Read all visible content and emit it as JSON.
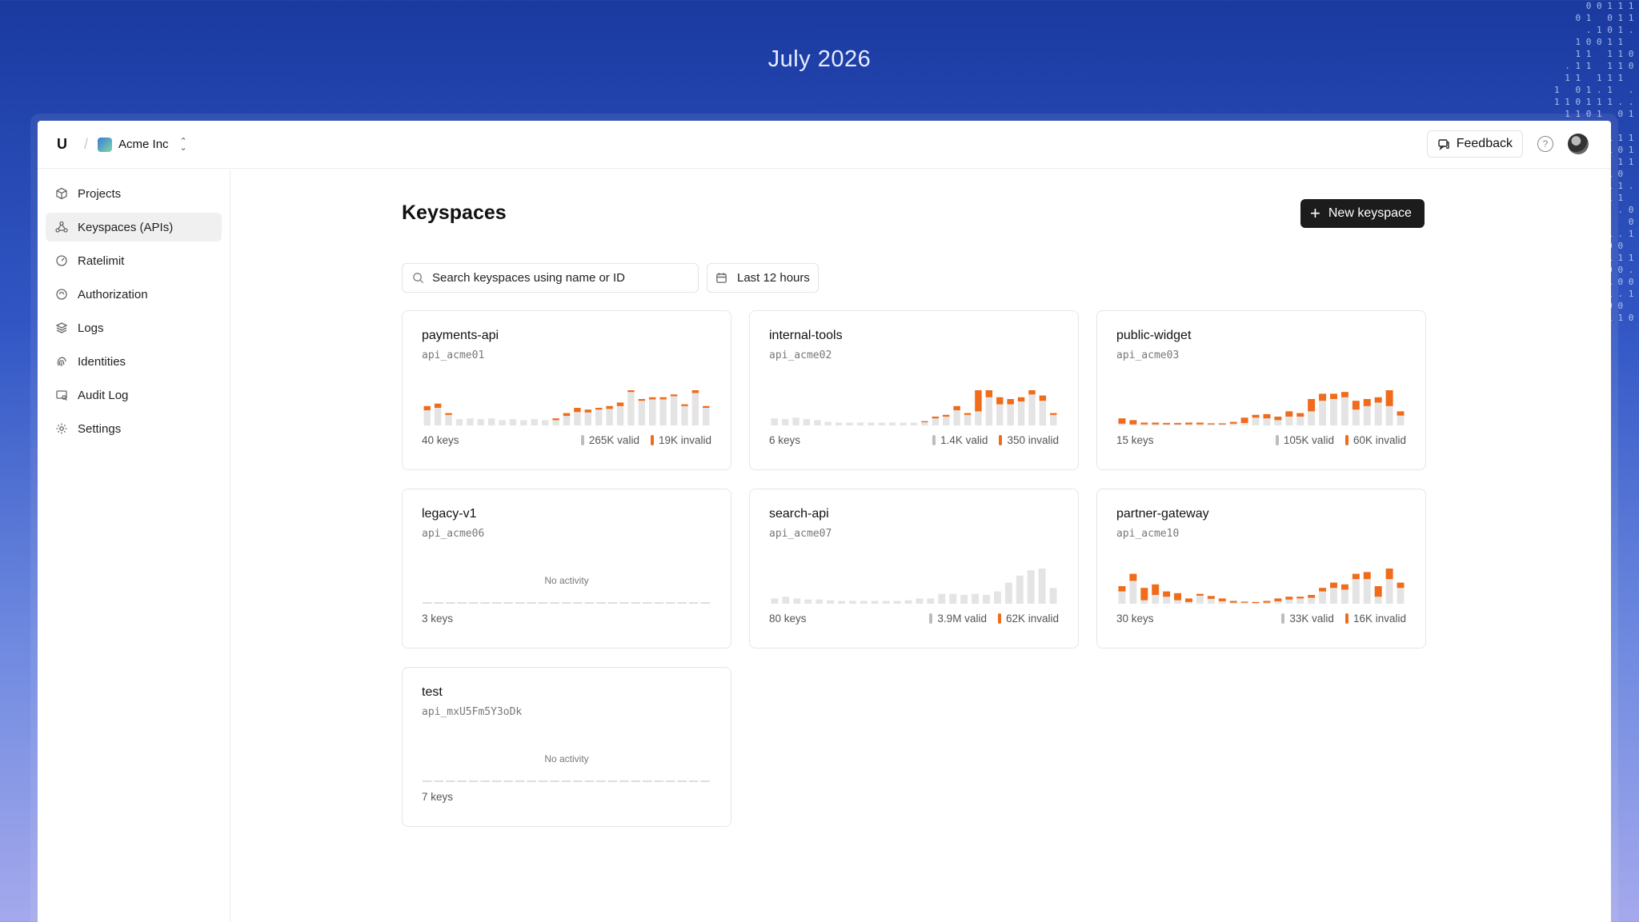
{
  "banner": {
    "date": "July 2026"
  },
  "topbar": {
    "logo": "U",
    "org_name": "Acme Inc",
    "feedback_label": "Feedback",
    "help_glyph": "?"
  },
  "sidebar": {
    "items": [
      {
        "label": "Projects",
        "icon": "cube-icon"
      },
      {
        "label": "Keyspaces (APIs)",
        "icon": "nodes-icon",
        "active": true
      },
      {
        "label": "Ratelimit",
        "icon": "gauge-icon"
      },
      {
        "label": "Authorization",
        "icon": "shield-icon"
      },
      {
        "label": "Logs",
        "icon": "layers-icon"
      },
      {
        "label": "Identities",
        "icon": "fingerprint-icon"
      },
      {
        "label": "Audit Log",
        "icon": "search-doc-icon"
      },
      {
        "label": "Settings",
        "icon": "gear-icon"
      }
    ]
  },
  "main": {
    "title": "Keyspaces",
    "new_button_label": "New keyspace",
    "search_placeholder": "Search keyspaces using name or ID",
    "range_label": "Last 12 hours",
    "no_activity_label": "No activity"
  },
  "colors": {
    "valid": "#e4e4e4",
    "invalid": "#f06b1a",
    "empty": "#dedede"
  },
  "keyspaces": [
    {
      "name": "payments-api",
      "id": "api_acme01",
      "keys": "40 keys",
      "valid": "265K valid",
      "invalid": "19K invalid",
      "activity": [
        [
          0.55,
          0.12
        ],
        [
          0.62,
          0.12
        ],
        [
          0.35,
          0.05
        ],
        [
          0.18,
          0
        ],
        [
          0.2,
          0
        ],
        [
          0.18,
          0
        ],
        [
          0.2,
          0
        ],
        [
          0.15,
          0
        ],
        [
          0.18,
          0
        ],
        [
          0.15,
          0
        ],
        [
          0.18,
          0
        ],
        [
          0.15,
          0
        ],
        [
          0.2,
          0.05
        ],
        [
          0.35,
          0.08
        ],
        [
          0.5,
          0.12
        ],
        [
          0.45,
          0.08
        ],
        [
          0.5,
          0.05
        ],
        [
          0.55,
          0.08
        ],
        [
          0.65,
          0.1
        ],
        [
          1.0,
          0.05
        ],
        [
          0.75,
          0.05
        ],
        [
          0.8,
          0.06
        ],
        [
          0.8,
          0.06
        ],
        [
          0.88,
          0.05
        ],
        [
          0.6,
          0.05
        ],
        [
          1.0,
          0.08
        ],
        [
          0.55,
          0.05
        ]
      ]
    },
    {
      "name": "internal-tools",
      "id": "api_acme02",
      "keys": "6 keys",
      "valid": "1.4K valid",
      "invalid": "350 invalid",
      "activity": [
        [
          0.2,
          0
        ],
        [
          0.18,
          0
        ],
        [
          0.22,
          0
        ],
        [
          0.18,
          0
        ],
        [
          0.15,
          0
        ],
        [
          0.1,
          0
        ],
        [
          0.08,
          0
        ],
        [
          0.08,
          0
        ],
        [
          0.08,
          0
        ],
        [
          0.08,
          0
        ],
        [
          0.08,
          0
        ],
        [
          0.08,
          0
        ],
        [
          0.08,
          0
        ],
        [
          0.08,
          0
        ],
        [
          0.12,
          0.03
        ],
        [
          0.25,
          0.05
        ],
        [
          0.3,
          0.05
        ],
        [
          0.55,
          0.12
        ],
        [
          0.35,
          0.05
        ],
        [
          1.0,
          0.6
        ],
        [
          1.0,
          0.2
        ],
        [
          0.8,
          0.2
        ],
        [
          0.75,
          0.15
        ],
        [
          0.8,
          0.12
        ],
        [
          1.0,
          0.12
        ],
        [
          0.85,
          0.15
        ],
        [
          0.35,
          0.05
        ]
      ]
    },
    {
      "name": "public-widget",
      "id": "api_acme03",
      "keys": "15 keys",
      "valid": "105K valid",
      "invalid": "60K invalid",
      "activity": [
        [
          0.2,
          0.15
        ],
        [
          0.15,
          0.12
        ],
        [
          0.08,
          0.05
        ],
        [
          0.08,
          0.05
        ],
        [
          0.07,
          0.04
        ],
        [
          0.07,
          0.04
        ],
        [
          0.08,
          0.05
        ],
        [
          0.08,
          0.05
        ],
        [
          0.06,
          0.03
        ],
        [
          0.06,
          0.03
        ],
        [
          0.1,
          0.05
        ],
        [
          0.22,
          0.15
        ],
        [
          0.3,
          0.08
        ],
        [
          0.32,
          0.12
        ],
        [
          0.25,
          0.1
        ],
        [
          0.4,
          0.15
        ],
        [
          0.35,
          0.1
        ],
        [
          0.75,
          0.35
        ],
        [
          0.9,
          0.2
        ],
        [
          0.9,
          0.15
        ],
        [
          0.95,
          0.15
        ],
        [
          0.7,
          0.25
        ],
        [
          0.75,
          0.2
        ],
        [
          0.8,
          0.15
        ],
        [
          1.0,
          0.45
        ],
        [
          0.4,
          0.12
        ]
      ]
    },
    {
      "name": "legacy-v1",
      "id": "api_acme06",
      "keys": "3 keys",
      "valid": "",
      "invalid": "",
      "no_activity": true,
      "activity": []
    },
    {
      "name": "search-api",
      "id": "api_acme07",
      "keys": "80 keys",
      "valid": "3.9M valid",
      "invalid": "62K invalid",
      "activity": [
        [
          0.15,
          0
        ],
        [
          0.2,
          0
        ],
        [
          0.15,
          0
        ],
        [
          0.12,
          0
        ],
        [
          0.12,
          0
        ],
        [
          0.1,
          0
        ],
        [
          0.08,
          0
        ],
        [
          0.08,
          0
        ],
        [
          0.08,
          0
        ],
        [
          0.08,
          0
        ],
        [
          0.08,
          0
        ],
        [
          0.08,
          0
        ],
        [
          0.1,
          0
        ],
        [
          0.15,
          0
        ],
        [
          0.15,
          0
        ],
        [
          0.28,
          0
        ],
        [
          0.28,
          0
        ],
        [
          0.25,
          0
        ],
        [
          0.28,
          0
        ],
        [
          0.25,
          0
        ],
        [
          0.35,
          0
        ],
        [
          0.6,
          0
        ],
        [
          0.8,
          0
        ],
        [
          0.95,
          0
        ],
        [
          1.0,
          0
        ],
        [
          0.45,
          0
        ]
      ]
    },
    {
      "name": "partner-gateway",
      "id": "api_acme10",
      "keys": "30 keys",
      "valid": "33K valid",
      "invalid": "16K invalid",
      "activity": [
        [
          0.5,
          0.15
        ],
        [
          0.85,
          0.2
        ],
        [
          0.45,
          0.35
        ],
        [
          0.55,
          0.3
        ],
        [
          0.35,
          0.15
        ],
        [
          0.3,
          0.2
        ],
        [
          0.15,
          0.1
        ],
        [
          0.28,
          0.05
        ],
        [
          0.22,
          0.08
        ],
        [
          0.15,
          0.08
        ],
        [
          0.08,
          0.05
        ],
        [
          0.06,
          0.03
        ],
        [
          0.05,
          0.03
        ],
        [
          0.08,
          0.05
        ],
        [
          0.15,
          0.08
        ],
        [
          0.2,
          0.08
        ],
        [
          0.2,
          0.05
        ],
        [
          0.25,
          0.08
        ],
        [
          0.45,
          0.1
        ],
        [
          0.6,
          0.15
        ],
        [
          0.55,
          0.15
        ],
        [
          0.85,
          0.15
        ],
        [
          0.9,
          0.2
        ],
        [
          0.5,
          0.3
        ],
        [
          1.0,
          0.3
        ],
        [
          0.6,
          0.15
        ]
      ]
    },
    {
      "name": "test",
      "id": "api_mxU5Fm5Y3oDk",
      "keys": "7 keys",
      "valid": "",
      "invalid": "",
      "no_activity": true,
      "activity": []
    }
  ]
}
